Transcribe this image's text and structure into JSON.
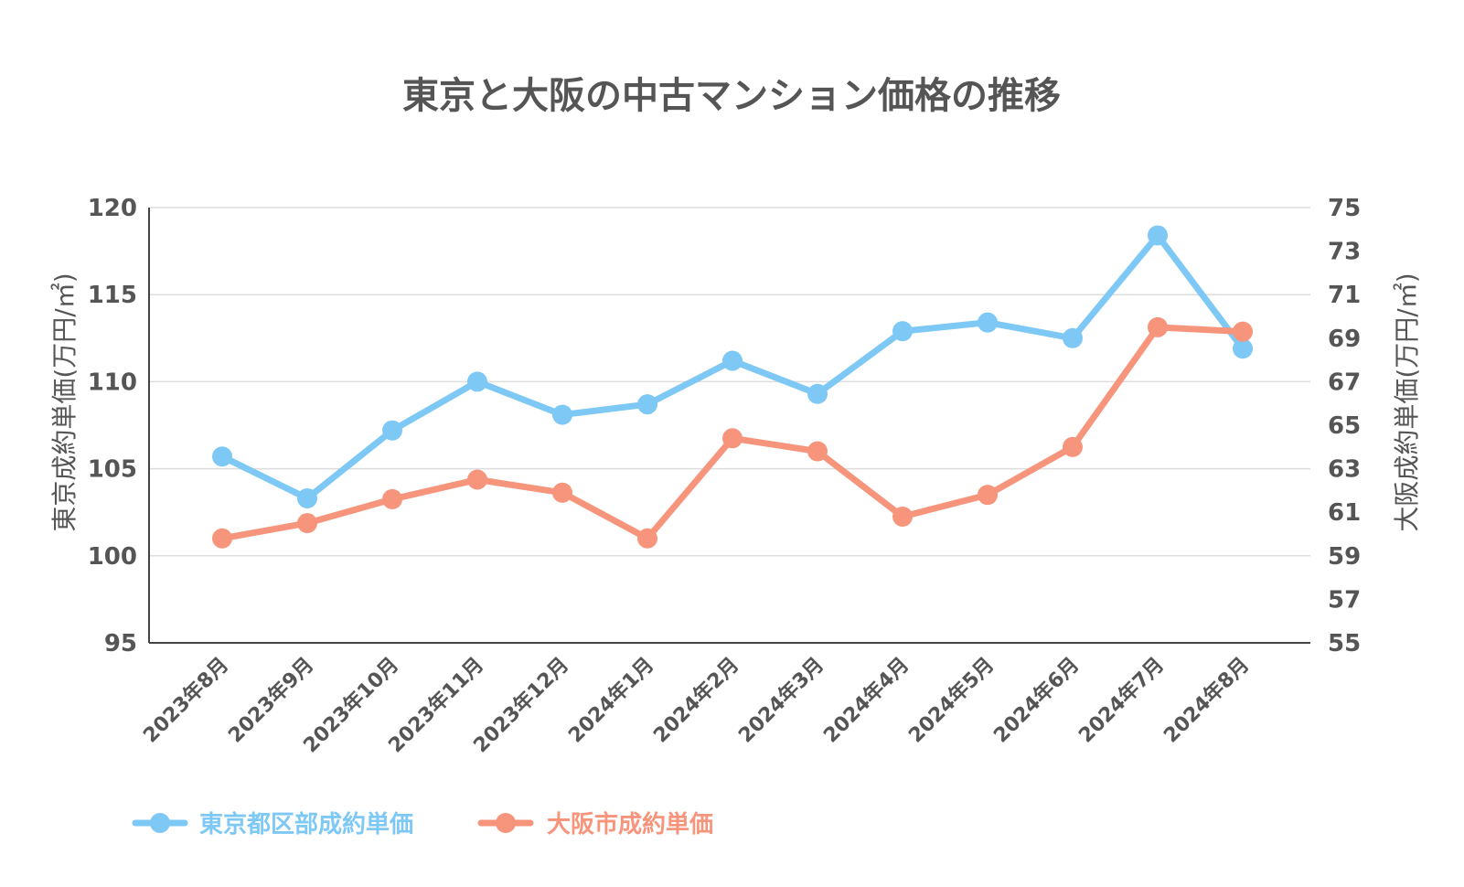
{
  "chart_data": {
    "type": "line",
    "title": "東京と大阪の中古マンション価格の推移",
    "categories": [
      "2023年8月",
      "2023年9月",
      "2023年10月",
      "2023年11月",
      "2023年12月",
      "2024年1月",
      "2024年2月",
      "2024年3月",
      "2024年4月",
      "2024年5月",
      "2024年6月",
      "2024年7月",
      "2024年8月"
    ],
    "y_left": {
      "label": "東京成約単価(万円/㎡)",
      "ylim": [
        95,
        120
      ],
      "ticks": [
        "95",
        "100",
        "105",
        "110",
        "115",
        "120"
      ]
    },
    "y_right": {
      "label": "大阪成約単価(万円/㎡)",
      "ylim": [
        55,
        75
      ],
      "ticks": [
        "55",
        "57",
        "59",
        "61",
        "63",
        "65",
        "67",
        "69",
        "71",
        "73",
        "75"
      ]
    },
    "grid": true,
    "legend_position": "bottom-left",
    "series": [
      {
        "name": "東京都区部成約単価",
        "axis": "left",
        "color": "#7ec8f5",
        "values": [
          105.7,
          103.3,
          107.2,
          110.0,
          108.1,
          108.7,
          111.2,
          109.3,
          112.9,
          113.4,
          112.5,
          118.4,
          111.9
        ]
      },
      {
        "name": "大阪市成約単価",
        "axis": "right",
        "color": "#f7957c",
        "values": [
          59.8,
          60.5,
          61.6,
          62.5,
          61.9,
          59.8,
          64.4,
          63.8,
          60.8,
          61.8,
          64.0,
          69.5,
          69.3
        ]
      }
    ]
  }
}
